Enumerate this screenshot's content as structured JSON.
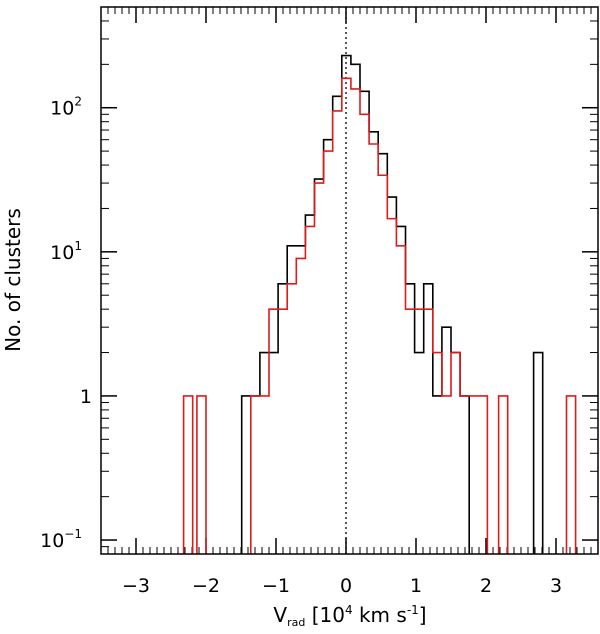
{
  "chart_data": {
    "type": "histogram",
    "xlabel": {
      "base": "V",
      "sub": "rad",
      "open": "[",
      "unit_pre": "10",
      "unit_exp": "4",
      "unit_mid": " km s",
      "unit_exp2": "-1",
      "close": "]"
    },
    "ylabel": "No. of clusters",
    "xlim": [
      -3.5,
      3.6
    ],
    "ylim": [
      0.08,
      500
    ],
    "y_scale": "log",
    "x_ticks": [
      {
        "value": -3,
        "label": "−3"
      },
      {
        "value": -2,
        "label": "−2"
      },
      {
        "value": -1,
        "label": "−1"
      },
      {
        "value": 0,
        "label": "0"
      },
      {
        "value": 1,
        "label": "1"
      },
      {
        "value": 2,
        "label": "2"
      },
      {
        "value": 3,
        "label": "3"
      }
    ],
    "y_ticks": [
      {
        "value": 0.1,
        "base": "10",
        "exp": "−1"
      },
      {
        "value": 1,
        "base": "1",
        "exp": ""
      },
      {
        "value": 10,
        "base": "10",
        "exp": "1"
      },
      {
        "value": 100,
        "base": "10",
        "exp": "2"
      }
    ],
    "reference_line": {
      "x": 0,
      "style": "dotted"
    },
    "bin_width": 0.13,
    "series": [
      {
        "color": "#000000",
        "bins": [
          {
            "x0": -1.49,
            "y": 1
          },
          {
            "x0": -1.36,
            "y": 1
          },
          {
            "x0": -1.23,
            "y": 2
          },
          {
            "x0": -1.1,
            "y": 2
          },
          {
            "x0": -0.97,
            "y": 6
          },
          {
            "x0": -0.84,
            "y": 11
          },
          {
            "x0": -0.71,
            "y": 11
          },
          {
            "x0": -0.58,
            "y": 18
          },
          {
            "x0": -0.45,
            "y": 32
          },
          {
            "x0": -0.32,
            "y": 60
          },
          {
            "x0": -0.19,
            "y": 120
          },
          {
            "x0": -0.06,
            "y": 230
          },
          {
            "x0": 0.07,
            "y": 200
          },
          {
            "x0": 0.2,
            "y": 130
          },
          {
            "x0": 0.33,
            "y": 68
          },
          {
            "x0": 0.46,
            "y": 48
          },
          {
            "x0": 0.59,
            "y": 24
          },
          {
            "x0": 0.72,
            "y": 15
          },
          {
            "x0": 0.85,
            "y": 6
          },
          {
            "x0": 0.98,
            "y": 2
          },
          {
            "x0": 1.11,
            "y": 6
          },
          {
            "x0": 1.24,
            "y": 1
          },
          {
            "x0": 1.37,
            "y": 3
          },
          {
            "x0": 1.5,
            "y": 2
          },
          {
            "x0": 1.63,
            "y": 1
          },
          {
            "x0": 2.68,
            "y": 2
          }
        ]
      },
      {
        "color": "#dd1c1c",
        "bins": [
          {
            "x0": -2.32,
            "y": 1
          },
          {
            "x0": -2.13,
            "y": 1
          },
          {
            "x0": -1.36,
            "y": 1
          },
          {
            "x0": -1.23,
            "y": 1
          },
          {
            "x0": -1.1,
            "y": 4
          },
          {
            "x0": -0.97,
            "y": 4
          },
          {
            "x0": -0.84,
            "y": 6
          },
          {
            "x0": -0.71,
            "y": 9
          },
          {
            "x0": -0.58,
            "y": 15
          },
          {
            "x0": -0.45,
            "y": 30
          },
          {
            "x0": -0.32,
            "y": 50
          },
          {
            "x0": -0.19,
            "y": 95
          },
          {
            "x0": -0.06,
            "y": 160
          },
          {
            "x0": 0.07,
            "y": 135
          },
          {
            "x0": 0.2,
            "y": 90
          },
          {
            "x0": 0.33,
            "y": 56
          },
          {
            "x0": 0.46,
            "y": 34
          },
          {
            "x0": 0.59,
            "y": 17
          },
          {
            "x0": 0.72,
            "y": 11
          },
          {
            "x0": 0.85,
            "y": 4
          },
          {
            "x0": 0.98,
            "y": 4
          },
          {
            "x0": 1.11,
            "y": 4
          },
          {
            "x0": 1.24,
            "y": 2
          },
          {
            "x0": 1.37,
            "y": 1
          },
          {
            "x0": 1.5,
            "y": 2
          },
          {
            "x0": 1.63,
            "y": 1
          },
          {
            "x0": 1.76,
            "y": 1
          },
          {
            "x0": 1.89,
            "y": 1
          },
          {
            "x0": 2.18,
            "y": 1
          },
          {
            "x0": 3.15,
            "y": 1
          }
        ]
      }
    ]
  }
}
